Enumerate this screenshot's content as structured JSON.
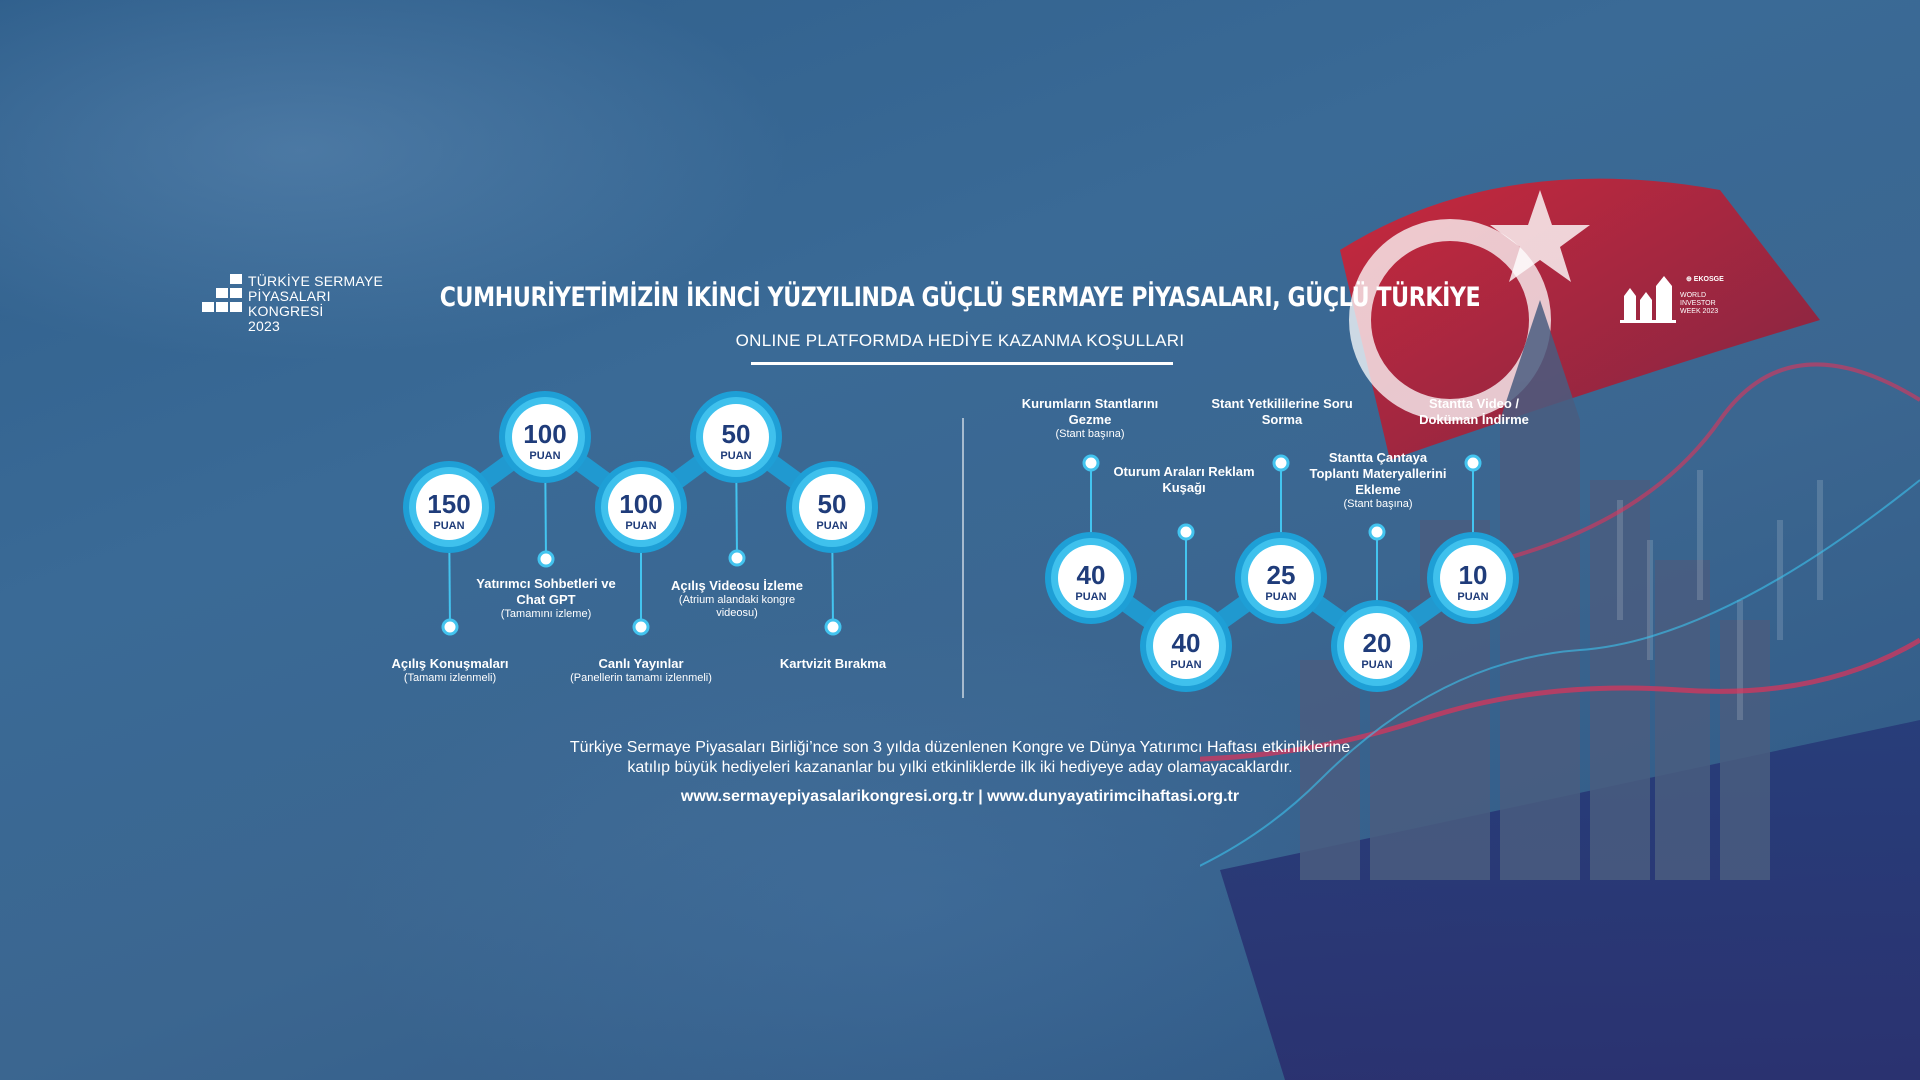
{
  "logo_left": {
    "line1": "TÜRKİYE SERMAYE PİYASALARI",
    "line2": "KONGRESİ",
    "line3": "2023"
  },
  "logo_right": {
    "tag": "⊕ EKOSGE",
    "line1": "WORLD",
    "line2": "INVESTOR",
    "line3": "WEEK 2023"
  },
  "title": "CUMHURİYETİMİZİN İKİNCİ YÜZYILINDA GÜÇLÜ SERMAYE PİYASALARI, GÜÇLÜ TÜRKİYE",
  "subtitle": "ONLINE PLATFORMDA HEDİYE KAZANMA KOŞULLARI",
  "points_unit": "PUAN",
  "left_items": [
    {
      "points": "150",
      "title": "Açılış Konuşmaları",
      "note": "(Tamamı izlenmeli)"
    },
    {
      "points": "100",
      "title": "Yatırımcı Sohbetleri ve Chat GPT",
      "note": "(Tamamını izleme)"
    },
    {
      "points": "100",
      "title": "Canlı Yayınlar",
      "note": "(Panellerin tamamı izlenmeli)"
    },
    {
      "points": "50",
      "title": "Açılış Videosu İzleme",
      "note": "(Atrium alandaki kongre videosu)"
    },
    {
      "points": "50",
      "title": "Kartvizit Bırakma",
      "note": ""
    }
  ],
  "right_items": [
    {
      "points": "40",
      "title": "Kurumların Stantlarını Gezme",
      "note": "(Stant başına)"
    },
    {
      "points": "40",
      "title": "Oturum Araları Reklam Kuşağı",
      "note": ""
    },
    {
      "points": "25",
      "title": "Stant Yetkililerine Soru Sorma",
      "note": ""
    },
    {
      "points": "20",
      "title": "Stantta Çantaya Toplantı Materyallerini Ekleme",
      "note": "(Stant başına)"
    },
    {
      "points": "10",
      "title": "Stantta Video / Doküman İndirme",
      "note": ""
    }
  ],
  "footer_line1": "Türkiye Sermaye Piyasaları Birliği’nce son 3 yılda düzenlenen Kongre ve Dünya Yatırımcı Haftası etkinliklerine",
  "footer_line2": "katılıp büyük hediyeleri kazananlar bu yılki etkinliklerde ilk iki hediyeye aday olamayacaklardır.",
  "footer_links": "www.sermayepiyasalarikongresi.org.tr | www.dunyayatirimcihaftasi.org.tr",
  "colors": {
    "accent": "#1e9fd6",
    "circle_ring": "#43c4ef",
    "number": "#1f3c7a"
  }
}
